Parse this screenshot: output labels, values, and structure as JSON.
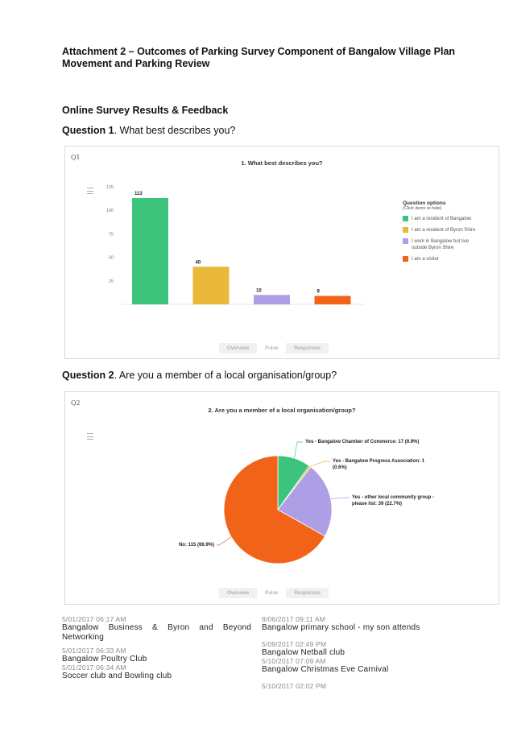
{
  "document": {
    "title": "Attachment 2 – Outcomes of Parking Survey Component of Bangalow Village Plan Movement and Parking Review",
    "section_title": "Online Survey Results & Feedback"
  },
  "q1": {
    "heading_label": "Question 1",
    "heading_text": ". What best describes you?",
    "panel_tag": "Q1",
    "legend_title": "Question options",
    "legend_subtitle": "(Click items to hide)",
    "tabs": [
      "Overview",
      "Pulse",
      "Responses"
    ]
  },
  "q2": {
    "heading_label": "Question 2",
    "heading_text": ". Are you a member of a local organisation/group?",
    "panel_tag": "Q2",
    "tabs": [
      "Overview",
      "Pulse",
      "Responses"
    ]
  },
  "chart_data": [
    {
      "type": "bar",
      "title": "1. What best describes you?",
      "categories": [
        "I am a resident of Bangalow",
        "I am a resident of Byron Shire",
        "I work in Bangalow but live outside Byron Shire",
        "I am a visitor"
      ],
      "values": [
        113,
        40,
        10,
        9
      ],
      "colors": [
        "#3cc47c",
        "#eab83a",
        "#ae9ee6",
        "#f2631a"
      ],
      "y_ticks": [
        "25",
        "50",
        "75",
        "100",
        "125"
      ],
      "ylim": [
        0,
        125
      ],
      "grid": false,
      "legend_position": "right"
    },
    {
      "type": "pie",
      "title": "2. Are you a member of a local organisation/group?",
      "labels": [
        "Yes - Bangalow Chamber of Commerce: 17 (9.9%)",
        "Yes - Bangalow Progress Association: 1 (0.6%)",
        "Yes - other local community group - please list: 39 (22.7%)",
        "No: 115 (66.9%)"
      ],
      "values": [
        17,
        1,
        39,
        115
      ],
      "colors": [
        "#3cc47c",
        "#eab83a",
        "#ae9ee6",
        "#f2631a"
      ]
    }
  ],
  "responses": {
    "left": [
      {
        "date": "5/01/2017 06:17 AM",
        "text": "Bangalow   Business   &   Byron   and   Beyond Networking"
      },
      {
        "date": "5/01/2017 06:33 AM",
        "text": "Bangalow Poultry Club"
      },
      {
        "date": "5/01/2017 06:34 AM",
        "text": "Soccer club and Bowling club"
      }
    ],
    "right": [
      {
        "date": "8/06/2017 09:11 AM",
        "text": "Bangalow primary school - my son attends"
      },
      {
        "date": "5/09/2017 02:49 PM",
        "text": "Bangalow Netball club"
      },
      {
        "date": "5/10/2017 07:09 AM",
        "text": "Bangalow Christmas Eve Carnival"
      },
      {
        "date": "5/10/2017 02:02 PM",
        "text": ""
      }
    ]
  }
}
